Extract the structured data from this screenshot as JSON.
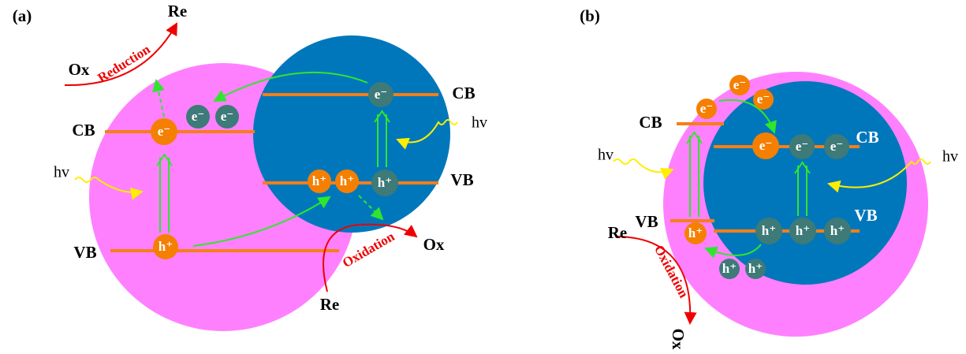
{
  "panel_a": {
    "label": "(a)",
    "reduction": {
      "reactant": "Ox",
      "product": "Re",
      "label": "Reduction"
    },
    "oxidation": {
      "reactant": "Re",
      "product": "Ox",
      "label": "Oxidation"
    },
    "left": {
      "cb": "CB",
      "vb": "VB",
      "light": "hv"
    },
    "right": {
      "cb": "CB",
      "vb": "VB",
      "light": "hv"
    },
    "particles": [
      "e⁻",
      "e⁻",
      "e⁻",
      "e⁻",
      "h⁺",
      "h⁺",
      "h⁺",
      "h⁺"
    ]
  },
  "panel_b": {
    "label": "(b)",
    "oxidation": {
      "reactant": "Re",
      "product": "Ox",
      "label": "Oxidation"
    },
    "outer": {
      "cb": "CB",
      "vb": "VB",
      "light": "hv"
    },
    "inner": {
      "cb": "CB",
      "vb": "VB",
      "light": "hv"
    },
    "particles": [
      "e⁻",
      "e⁻",
      "e⁻",
      "e⁻",
      "e⁻",
      "e⁻",
      "h⁺",
      "h⁺",
      "h⁺",
      "h⁺",
      "h⁺",
      "h⁺"
    ]
  }
}
